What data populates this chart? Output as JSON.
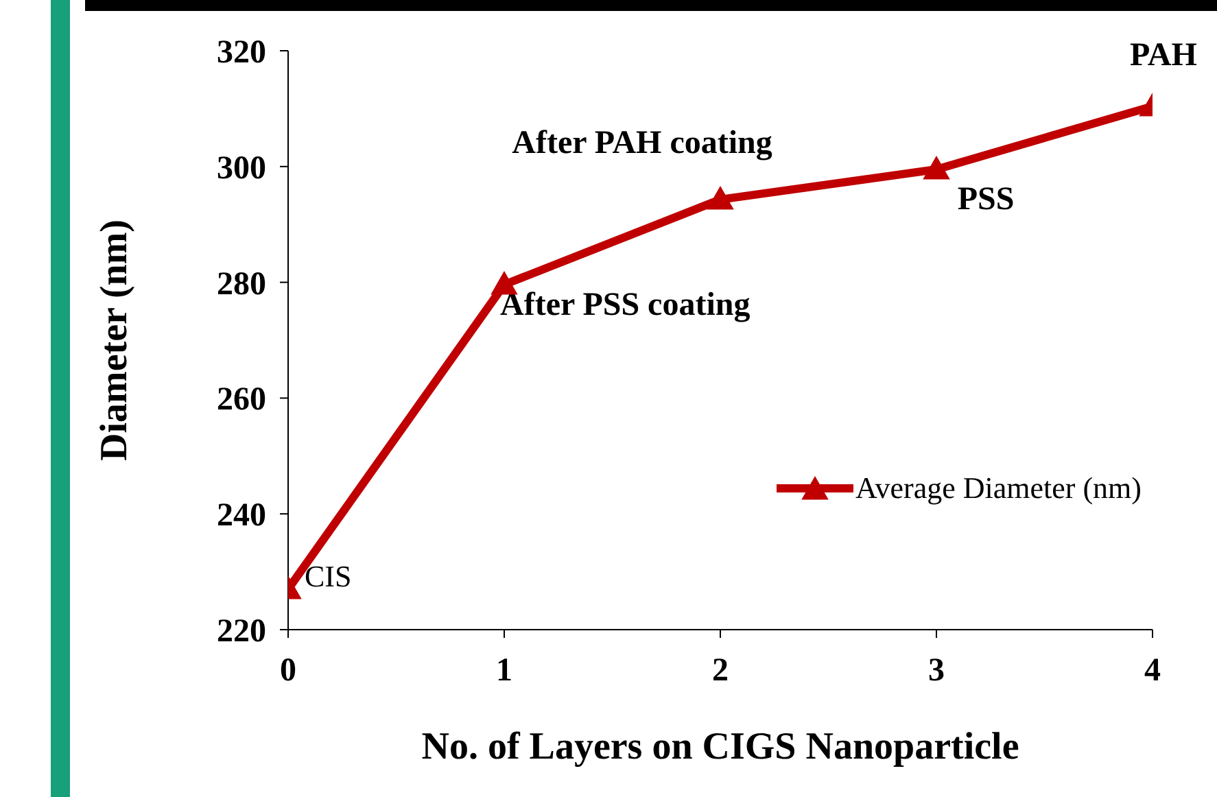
{
  "chart_data": {
    "type": "line",
    "xlabel": "No. of Layers on CIGS Nanoparticle",
    "ylabel": "Diameter (nm)",
    "x": [
      0,
      1,
      2,
      3,
      4
    ],
    "series": [
      {
        "name": "Average Diameter (nm)",
        "color": "#c00000",
        "values": [
          227,
          279.6,
          294.3,
          299.5,
          310.4
        ]
      }
    ],
    "xlim": [
      0,
      4
    ],
    "xticks": [
      0,
      1,
      2,
      3,
      4
    ],
    "ylim": [
      220,
      320
    ],
    "yticks": [
      220,
      240,
      260,
      280,
      300,
      320
    ],
    "annotations": [
      {
        "text": "CIS",
        "x": 0,
        "y": 227
      },
      {
        "text": "After PSS coating",
        "x": 1,
        "y": 279.6
      },
      {
        "text": "After PAH coating",
        "x": 2,
        "y": 294.3
      },
      {
        "text": "PSS",
        "x": 3,
        "y": 299.5
      },
      {
        "text": "PAH",
        "x": 4,
        "y": 310.4
      }
    ],
    "grid": false,
    "legend": "right",
    "marker": "triangle",
    "line_style": "solid"
  }
}
